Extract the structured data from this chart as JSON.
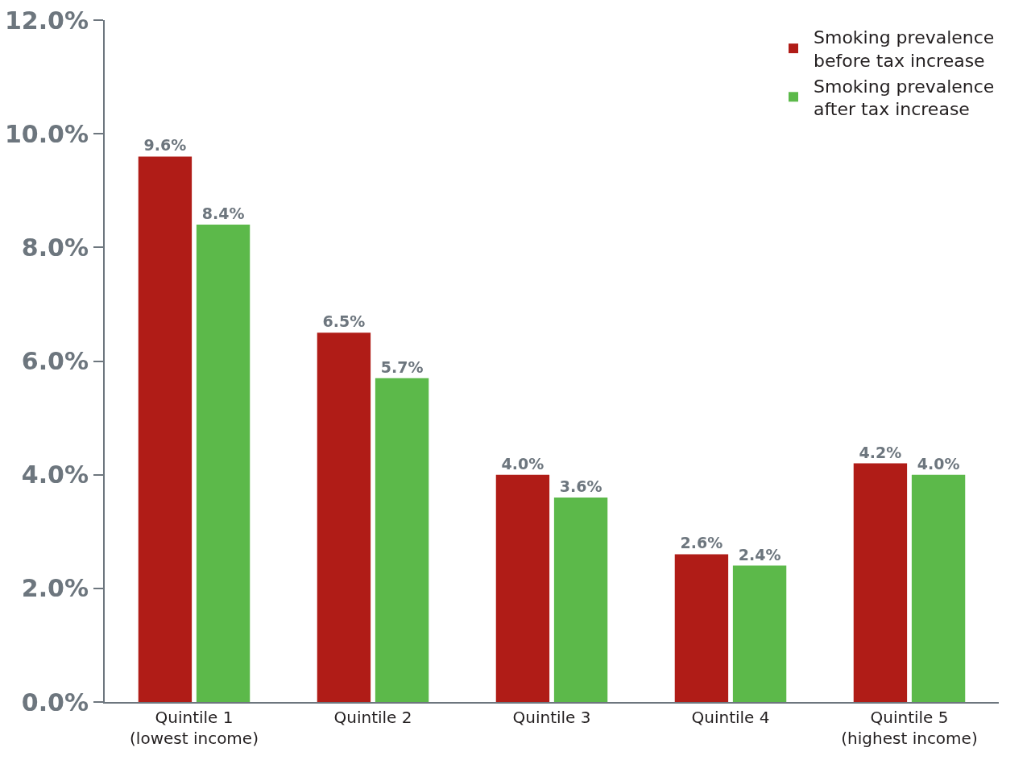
{
  "chart_data": {
    "type": "bar",
    "categories": [
      "Quintile 1\n(lowest income)",
      "Quintile 2",
      "Quintile 3",
      "Quintile 4",
      "Quintile 5\n(highest income)"
    ],
    "series": [
      {
        "name": "Smoking prevalence\nbefore tax increase",
        "color": "#b01c17",
        "values": [
          9.6,
          6.5,
          4.0,
          2.6,
          4.2
        ],
        "value_labels": [
          "9.6%",
          "6.5%",
          "4.0%",
          "2.6%",
          "4.2%"
        ]
      },
      {
        "name": "Smoking prevalence\nafter tax increase",
        "color": "#5cb94a",
        "values": [
          8.4,
          5.7,
          3.6,
          2.4,
          4.0
        ],
        "value_labels": [
          "8.4%",
          "5.7%",
          "3.6%",
          "2.4%",
          "4.0%"
        ]
      }
    ],
    "ylim": [
      0,
      12
    ],
    "yticks": [
      {
        "value": 0,
        "label": "0.0%"
      },
      {
        "value": 2,
        "label": "2.0%"
      },
      {
        "value": 4,
        "label": "4.0%"
      },
      {
        "value": 6,
        "label": "6.0%"
      },
      {
        "value": 8,
        "label": "8.0%"
      },
      {
        "value": 10,
        "label": "10.0%"
      },
      {
        "value": 12,
        "label": "12.0%"
      }
    ],
    "grid": false,
    "legend": "top right"
  }
}
